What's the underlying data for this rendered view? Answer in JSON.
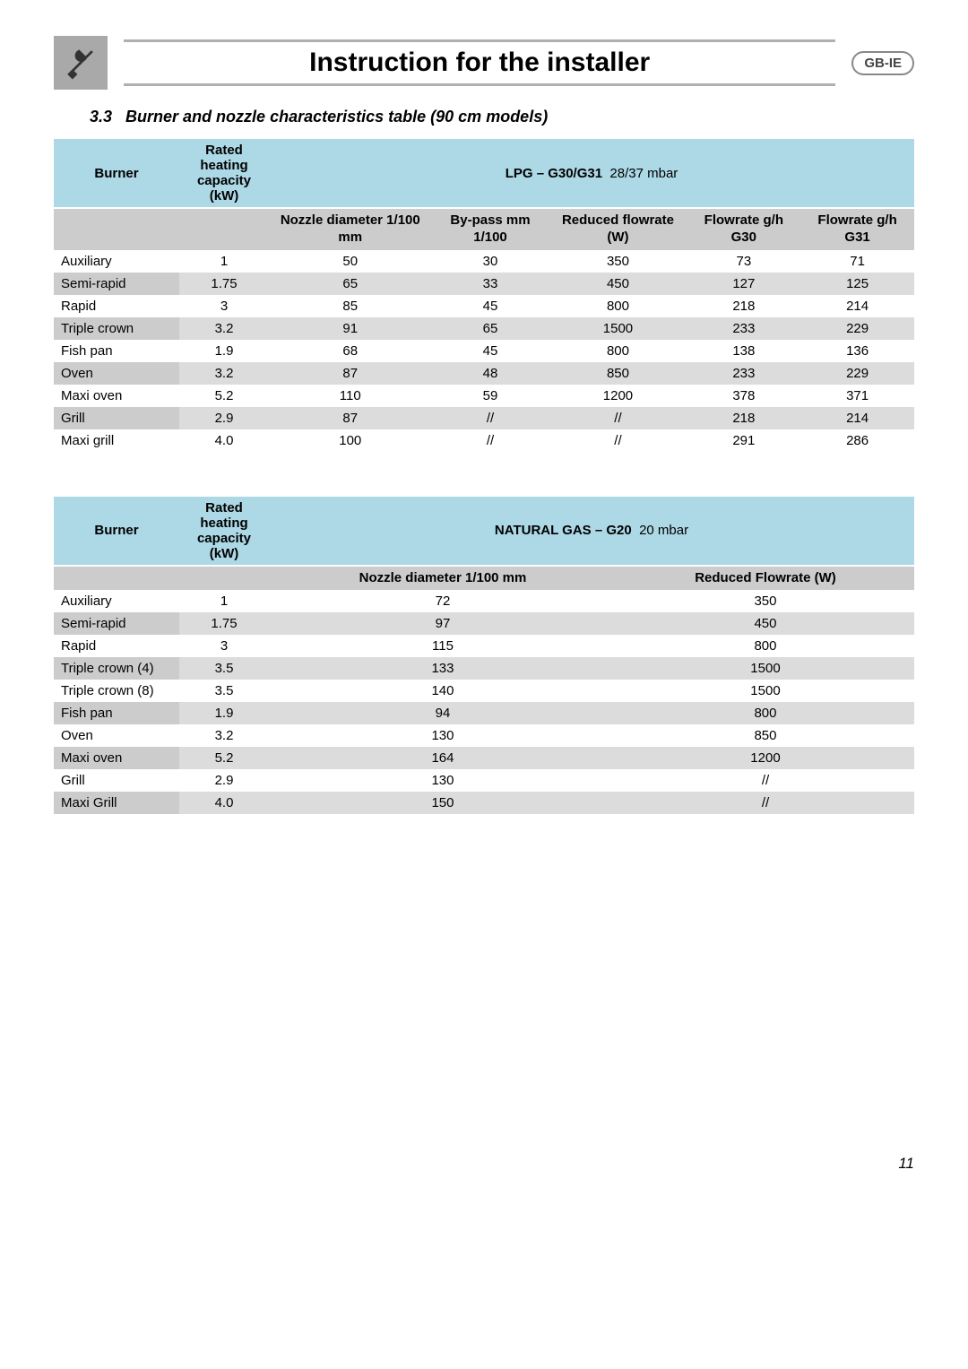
{
  "header": {
    "title": "Instruction for the installer",
    "badge": "GB-IE"
  },
  "section": {
    "number": "3.3",
    "title": "Burner and nozzle characteristics table (90 cm models)"
  },
  "table1": {
    "col_burner": "Burner",
    "col_capacity": "Rated heating capacity (kW)",
    "gas_label": "LPG – G30/G31",
    "gas_detail": "28/37 mbar",
    "cols": {
      "nozzle": "Nozzle diameter 1/100 mm",
      "bypass": "By-pass mm 1/100",
      "reduced": "Reduced flowrate (W)",
      "fg30": "Flowrate g/h G30",
      "fg31": "Flowrate g/h G31"
    },
    "rows": [
      {
        "b": "Auxiliary",
        "c": "1",
        "n": "50",
        "bp": "30",
        "r": "350",
        "g30": "73",
        "g31": "71"
      },
      {
        "b": "Semi-rapid",
        "c": "1.75",
        "n": "65",
        "bp": "33",
        "r": "450",
        "g30": "127",
        "g31": "125"
      },
      {
        "b": "Rapid",
        "c": "3",
        "n": "85",
        "bp": "45",
        "r": "800",
        "g30": "218",
        "g31": "214"
      },
      {
        "b": "Triple crown",
        "c": "3.2",
        "n": "91",
        "bp": "65",
        "r": "1500",
        "g30": "233",
        "g31": "229"
      },
      {
        "b": "Fish pan",
        "c": "1.9",
        "n": "68",
        "bp": "45",
        "r": "800",
        "g30": "138",
        "g31": "136"
      },
      {
        "b": "Oven",
        "c": "3.2",
        "n": "87",
        "bp": "48",
        "r": "850",
        "g30": "233",
        "g31": "229"
      },
      {
        "b": "Maxi oven",
        "c": "5.2",
        "n": "110",
        "bp": "59",
        "r": "1200",
        "g30": "378",
        "g31": "371"
      },
      {
        "b": "Grill",
        "c": "2.9",
        "n": "87",
        "bp": "//",
        "r": "//",
        "g30": "218",
        "g31": "214"
      },
      {
        "b": "Maxi grill",
        "c": "4.0",
        "n": "100",
        "bp": "//",
        "r": "//",
        "g30": "291",
        "g31": "286"
      }
    ]
  },
  "table2": {
    "col_burner": "Burner",
    "col_capacity": "Rated heating capacity (kW)",
    "gas_label": "NATURAL GAS – G20",
    "gas_detail": "20 mbar",
    "cols": {
      "nozzle": "Nozzle diameter 1/100 mm",
      "reduced": "Reduced Flowrate (W)"
    },
    "rows": [
      {
        "b": "Auxiliary",
        "c": "1",
        "n": "72",
        "r": "350"
      },
      {
        "b": "Semi-rapid",
        "c": "1.75",
        "n": "97",
        "r": "450"
      },
      {
        "b": "Rapid",
        "c": "3",
        "n": "115",
        "r": "800"
      },
      {
        "b": "Triple crown (4)",
        "c": "3.5",
        "n": "133",
        "r": "1500"
      },
      {
        "b": "Triple crown (8)",
        "c": "3.5",
        "n": "140",
        "r": "1500"
      },
      {
        "b": "Fish pan",
        "c": "1.9",
        "n": "94",
        "r": "800"
      },
      {
        "b": "Oven",
        "c": "3.2",
        "n": "130",
        "r": "850"
      },
      {
        "b": "Maxi oven",
        "c": "5.2",
        "n": "164",
        "r": "1200"
      },
      {
        "b": "Grill",
        "c": "2.9",
        "n": "130",
        "r": "//"
      },
      {
        "b": "Maxi Grill",
        "c": "4.0",
        "n": "150",
        "r": "//"
      }
    ]
  },
  "page": "11",
  "colors": {
    "header_blue": "#add8e6",
    "gray_hdr": "#cccccc",
    "gray_row": "#dcdcdc",
    "icon_bg": "#a9a9a9"
  }
}
